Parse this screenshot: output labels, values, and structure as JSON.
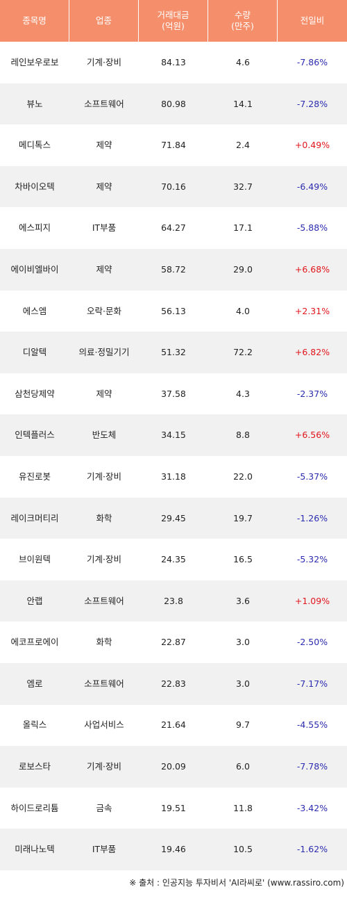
{
  "headers": [
    "종목명",
    "업종",
    "거래대금\n(억원)",
    "수량\n(만주)",
    "전일비"
  ],
  "rows": [
    {
      "name": "레인보우로보",
      "sector": "기계·장비",
      "amount": "84.13",
      "volume": "4.6",
      "change": "-7.86%"
    },
    {
      "name": "뷰노",
      "sector": "소프트웨어",
      "amount": "80.98",
      "volume": "14.1",
      "change": "-7.28%"
    },
    {
      "name": "메디톡스",
      "sector": "제약",
      "amount": "71.84",
      "volume": "2.4",
      "change": "+0.49%"
    },
    {
      "name": "차바이오텍",
      "sector": "제약",
      "amount": "70.16",
      "volume": "32.7",
      "change": "-6.49%"
    },
    {
      "name": "에스피지",
      "sector": "IT부품",
      "amount": "64.27",
      "volume": "17.1",
      "change": "-5.88%"
    },
    {
      "name": "에이비엘바이",
      "sector": "제약",
      "amount": "58.72",
      "volume": "29.0",
      "change": "+6.68%"
    },
    {
      "name": "에스엠",
      "sector": "오락·문화",
      "amount": "56.13",
      "volume": "4.0",
      "change": "+2.31%"
    },
    {
      "name": "디알텍",
      "sector": "의료·정밀기기",
      "amount": "51.32",
      "volume": "72.2",
      "change": "+6.82%"
    },
    {
      "name": "삼천당제약",
      "sector": "제약",
      "amount": "37.58",
      "volume": "4.3",
      "change": "-2.37%"
    },
    {
      "name": "인텍플러스",
      "sector": "반도체",
      "amount": "34.15",
      "volume": "8.8",
      "change": "+6.56%"
    },
    {
      "name": "유진로봇",
      "sector": "기계·장비",
      "amount": "31.18",
      "volume": "22.0",
      "change": "-5.37%"
    },
    {
      "name": "레이크머티리",
      "sector": "화학",
      "amount": "29.45",
      "volume": "19.7",
      "change": "-1.26%"
    },
    {
      "name": "브이원텍",
      "sector": "기계·장비",
      "amount": "24.35",
      "volume": "16.5",
      "change": "-5.32%"
    },
    {
      "name": "안랩",
      "sector": "소프트웨어",
      "amount": "23.8",
      "volume": "3.6",
      "change": "+1.09%"
    },
    {
      "name": "에코프로에이",
      "sector": "화학",
      "amount": "22.87",
      "volume": "3.0",
      "change": "-2.50%"
    },
    {
      "name": "엠로",
      "sector": "소프트웨어",
      "amount": "22.83",
      "volume": "3.0",
      "change": "-7.17%"
    },
    {
      "name": "올릭스",
      "sector": "사업서비스",
      "amount": "21.64",
      "volume": "9.7",
      "change": "-4.55%"
    },
    {
      "name": "로보스타",
      "sector": "기계·장비",
      "amount": "20.09",
      "volume": "6.0",
      "change": "-7.78%"
    },
    {
      "name": "하이드로리튬",
      "sector": "금속",
      "amount": "19.51",
      "volume": "11.8",
      "change": "-3.42%"
    },
    {
      "name": "미래나노텍",
      "sector": "IT부품",
      "amount": "19.46",
      "volume": "10.5",
      "change": "-1.62%"
    }
  ],
  "colors": {
    "header": "#f58f6b",
    "up": "#e1141a",
    "down": "#2b2bb0",
    "stripe": "#f1f1f1"
  },
  "footer": "※ 출처 : 인공지능 투자비서 'AI라씨로' (www.rassiro.com)"
}
